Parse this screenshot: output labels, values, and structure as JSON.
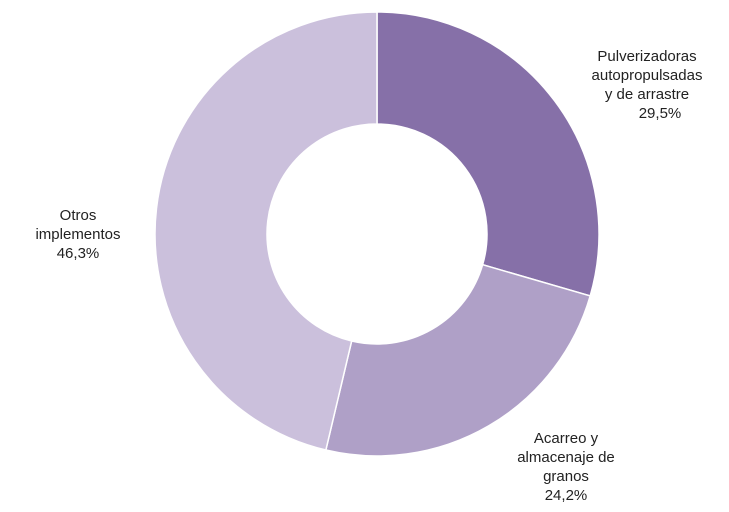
{
  "chart_data": {
    "type": "pie",
    "variant": "donut",
    "title": "",
    "slices": [
      {
        "label_lines": [
          "Pulverizadoras",
          "autopropulsadas",
          "y de arrastre"
        ],
        "value_label": "29,5%",
        "value": 29.5,
        "color": "#8670a8"
      },
      {
        "label_lines": [
          "Acarreo y",
          "almacenaje de",
          "granos"
        ],
        "value_label": "24,2%",
        "value": 24.2,
        "color": "#afa0c7"
      },
      {
        "label_lines": [
          "Otros",
          "implementos"
        ],
        "value_label": "46,3%",
        "value": 46.3,
        "color": "#cbc0dc"
      }
    ],
    "legend": "none",
    "start_angle": "12 o'clock",
    "direction": "clockwise"
  }
}
